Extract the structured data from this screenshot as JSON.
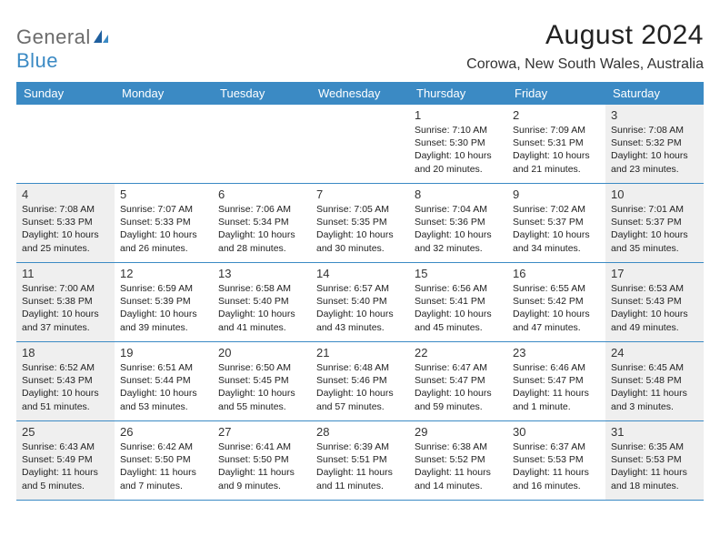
{
  "logo": {
    "text1": "General",
    "text2": "Blue"
  },
  "title": "August 2024",
  "location": "Corowa, New South Wales, Australia",
  "colors": {
    "header_bg": "#3b8ac4",
    "shaded_bg": "#efefef",
    "page_bg": "#ffffff",
    "text": "#222222",
    "logo_gray": "#6b6b6b",
    "logo_blue": "#3b8ac4"
  },
  "day_labels": [
    "Sunday",
    "Monday",
    "Tuesday",
    "Wednesday",
    "Thursday",
    "Friday",
    "Saturday"
  ],
  "weeks": [
    [
      {
        "day": "",
        "shaded": false
      },
      {
        "day": "",
        "shaded": false
      },
      {
        "day": "",
        "shaded": false
      },
      {
        "day": "",
        "shaded": false
      },
      {
        "day": "1",
        "shaded": false,
        "sunrise": "7:10 AM",
        "sunset": "5:30 PM",
        "daylight": "10 hours and 20 minutes."
      },
      {
        "day": "2",
        "shaded": false,
        "sunrise": "7:09 AM",
        "sunset": "5:31 PM",
        "daylight": "10 hours and 21 minutes."
      },
      {
        "day": "3",
        "shaded": true,
        "sunrise": "7:08 AM",
        "sunset": "5:32 PM",
        "daylight": "10 hours and 23 minutes."
      }
    ],
    [
      {
        "day": "4",
        "shaded": true,
        "sunrise": "7:08 AM",
        "sunset": "5:33 PM",
        "daylight": "10 hours and 25 minutes."
      },
      {
        "day": "5",
        "shaded": false,
        "sunrise": "7:07 AM",
        "sunset": "5:33 PM",
        "daylight": "10 hours and 26 minutes."
      },
      {
        "day": "6",
        "shaded": false,
        "sunrise": "7:06 AM",
        "sunset": "5:34 PM",
        "daylight": "10 hours and 28 minutes."
      },
      {
        "day": "7",
        "shaded": false,
        "sunrise": "7:05 AM",
        "sunset": "5:35 PM",
        "daylight": "10 hours and 30 minutes."
      },
      {
        "day": "8",
        "shaded": false,
        "sunrise": "7:04 AM",
        "sunset": "5:36 PM",
        "daylight": "10 hours and 32 minutes."
      },
      {
        "day": "9",
        "shaded": false,
        "sunrise": "7:02 AM",
        "sunset": "5:37 PM",
        "daylight": "10 hours and 34 minutes."
      },
      {
        "day": "10",
        "shaded": true,
        "sunrise": "7:01 AM",
        "sunset": "5:37 PM",
        "daylight": "10 hours and 35 minutes."
      }
    ],
    [
      {
        "day": "11",
        "shaded": true,
        "sunrise": "7:00 AM",
        "sunset": "5:38 PM",
        "daylight": "10 hours and 37 minutes."
      },
      {
        "day": "12",
        "shaded": false,
        "sunrise": "6:59 AM",
        "sunset": "5:39 PM",
        "daylight": "10 hours and 39 minutes."
      },
      {
        "day": "13",
        "shaded": false,
        "sunrise": "6:58 AM",
        "sunset": "5:40 PM",
        "daylight": "10 hours and 41 minutes."
      },
      {
        "day": "14",
        "shaded": false,
        "sunrise": "6:57 AM",
        "sunset": "5:40 PM",
        "daylight": "10 hours and 43 minutes."
      },
      {
        "day": "15",
        "shaded": false,
        "sunrise": "6:56 AM",
        "sunset": "5:41 PM",
        "daylight": "10 hours and 45 minutes."
      },
      {
        "day": "16",
        "shaded": false,
        "sunrise": "6:55 AM",
        "sunset": "5:42 PM",
        "daylight": "10 hours and 47 minutes."
      },
      {
        "day": "17",
        "shaded": true,
        "sunrise": "6:53 AM",
        "sunset": "5:43 PM",
        "daylight": "10 hours and 49 minutes."
      }
    ],
    [
      {
        "day": "18",
        "shaded": true,
        "sunrise": "6:52 AM",
        "sunset": "5:43 PM",
        "daylight": "10 hours and 51 minutes."
      },
      {
        "day": "19",
        "shaded": false,
        "sunrise": "6:51 AM",
        "sunset": "5:44 PM",
        "daylight": "10 hours and 53 minutes."
      },
      {
        "day": "20",
        "shaded": false,
        "sunrise": "6:50 AM",
        "sunset": "5:45 PM",
        "daylight": "10 hours and 55 minutes."
      },
      {
        "day": "21",
        "shaded": false,
        "sunrise": "6:48 AM",
        "sunset": "5:46 PM",
        "daylight": "10 hours and 57 minutes."
      },
      {
        "day": "22",
        "shaded": false,
        "sunrise": "6:47 AM",
        "sunset": "5:47 PM",
        "daylight": "10 hours and 59 minutes."
      },
      {
        "day": "23",
        "shaded": false,
        "sunrise": "6:46 AM",
        "sunset": "5:47 PM",
        "daylight": "11 hours and 1 minute."
      },
      {
        "day": "24",
        "shaded": true,
        "sunrise": "6:45 AM",
        "sunset": "5:48 PM",
        "daylight": "11 hours and 3 minutes."
      }
    ],
    [
      {
        "day": "25",
        "shaded": true,
        "sunrise": "6:43 AM",
        "sunset": "5:49 PM",
        "daylight": "11 hours and 5 minutes."
      },
      {
        "day": "26",
        "shaded": false,
        "sunrise": "6:42 AM",
        "sunset": "5:50 PM",
        "daylight": "11 hours and 7 minutes."
      },
      {
        "day": "27",
        "shaded": false,
        "sunrise": "6:41 AM",
        "sunset": "5:50 PM",
        "daylight": "11 hours and 9 minutes."
      },
      {
        "day": "28",
        "shaded": false,
        "sunrise": "6:39 AM",
        "sunset": "5:51 PM",
        "daylight": "11 hours and 11 minutes."
      },
      {
        "day": "29",
        "shaded": false,
        "sunrise": "6:38 AM",
        "sunset": "5:52 PM",
        "daylight": "11 hours and 14 minutes."
      },
      {
        "day": "30",
        "shaded": false,
        "sunrise": "6:37 AM",
        "sunset": "5:53 PM",
        "daylight": "11 hours and 16 minutes."
      },
      {
        "day": "31",
        "shaded": true,
        "sunrise": "6:35 AM",
        "sunset": "5:53 PM",
        "daylight": "11 hours and 18 minutes."
      }
    ]
  ],
  "labels": {
    "sunrise_prefix": "Sunrise: ",
    "sunset_prefix": "Sunset: ",
    "daylight_prefix": "Daylight: "
  }
}
